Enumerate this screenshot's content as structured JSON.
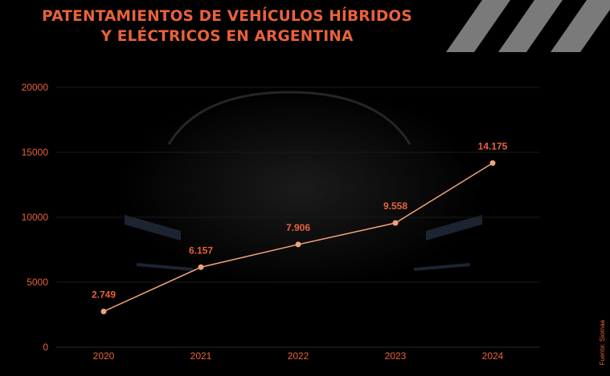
{
  "title_line1": "PATENTAMIENTOS DE VEHÍCULOS HÍBRIDOS",
  "title_line2": "Y ELÉCTRICOS EN ARGENTINA",
  "source": "Fuente: Siomaa",
  "colors": {
    "accent": "#e8623a",
    "line": "#f2a27a",
    "stripes": "#7a7a7a",
    "background": "#000000"
  },
  "chart_data": {
    "type": "line",
    "categories": [
      "2020",
      "2021",
      "2022",
      "2023",
      "2024"
    ],
    "values": [
      2749,
      6157,
      7906,
      9558,
      14175
    ],
    "data_labels": [
      "2.749",
      "6.157",
      "7.906",
      "9.558",
      "14.175"
    ],
    "y_ticks": [
      0,
      5000,
      10000,
      15000,
      20000
    ],
    "ylim": [
      0,
      20000
    ],
    "grid": true
  }
}
